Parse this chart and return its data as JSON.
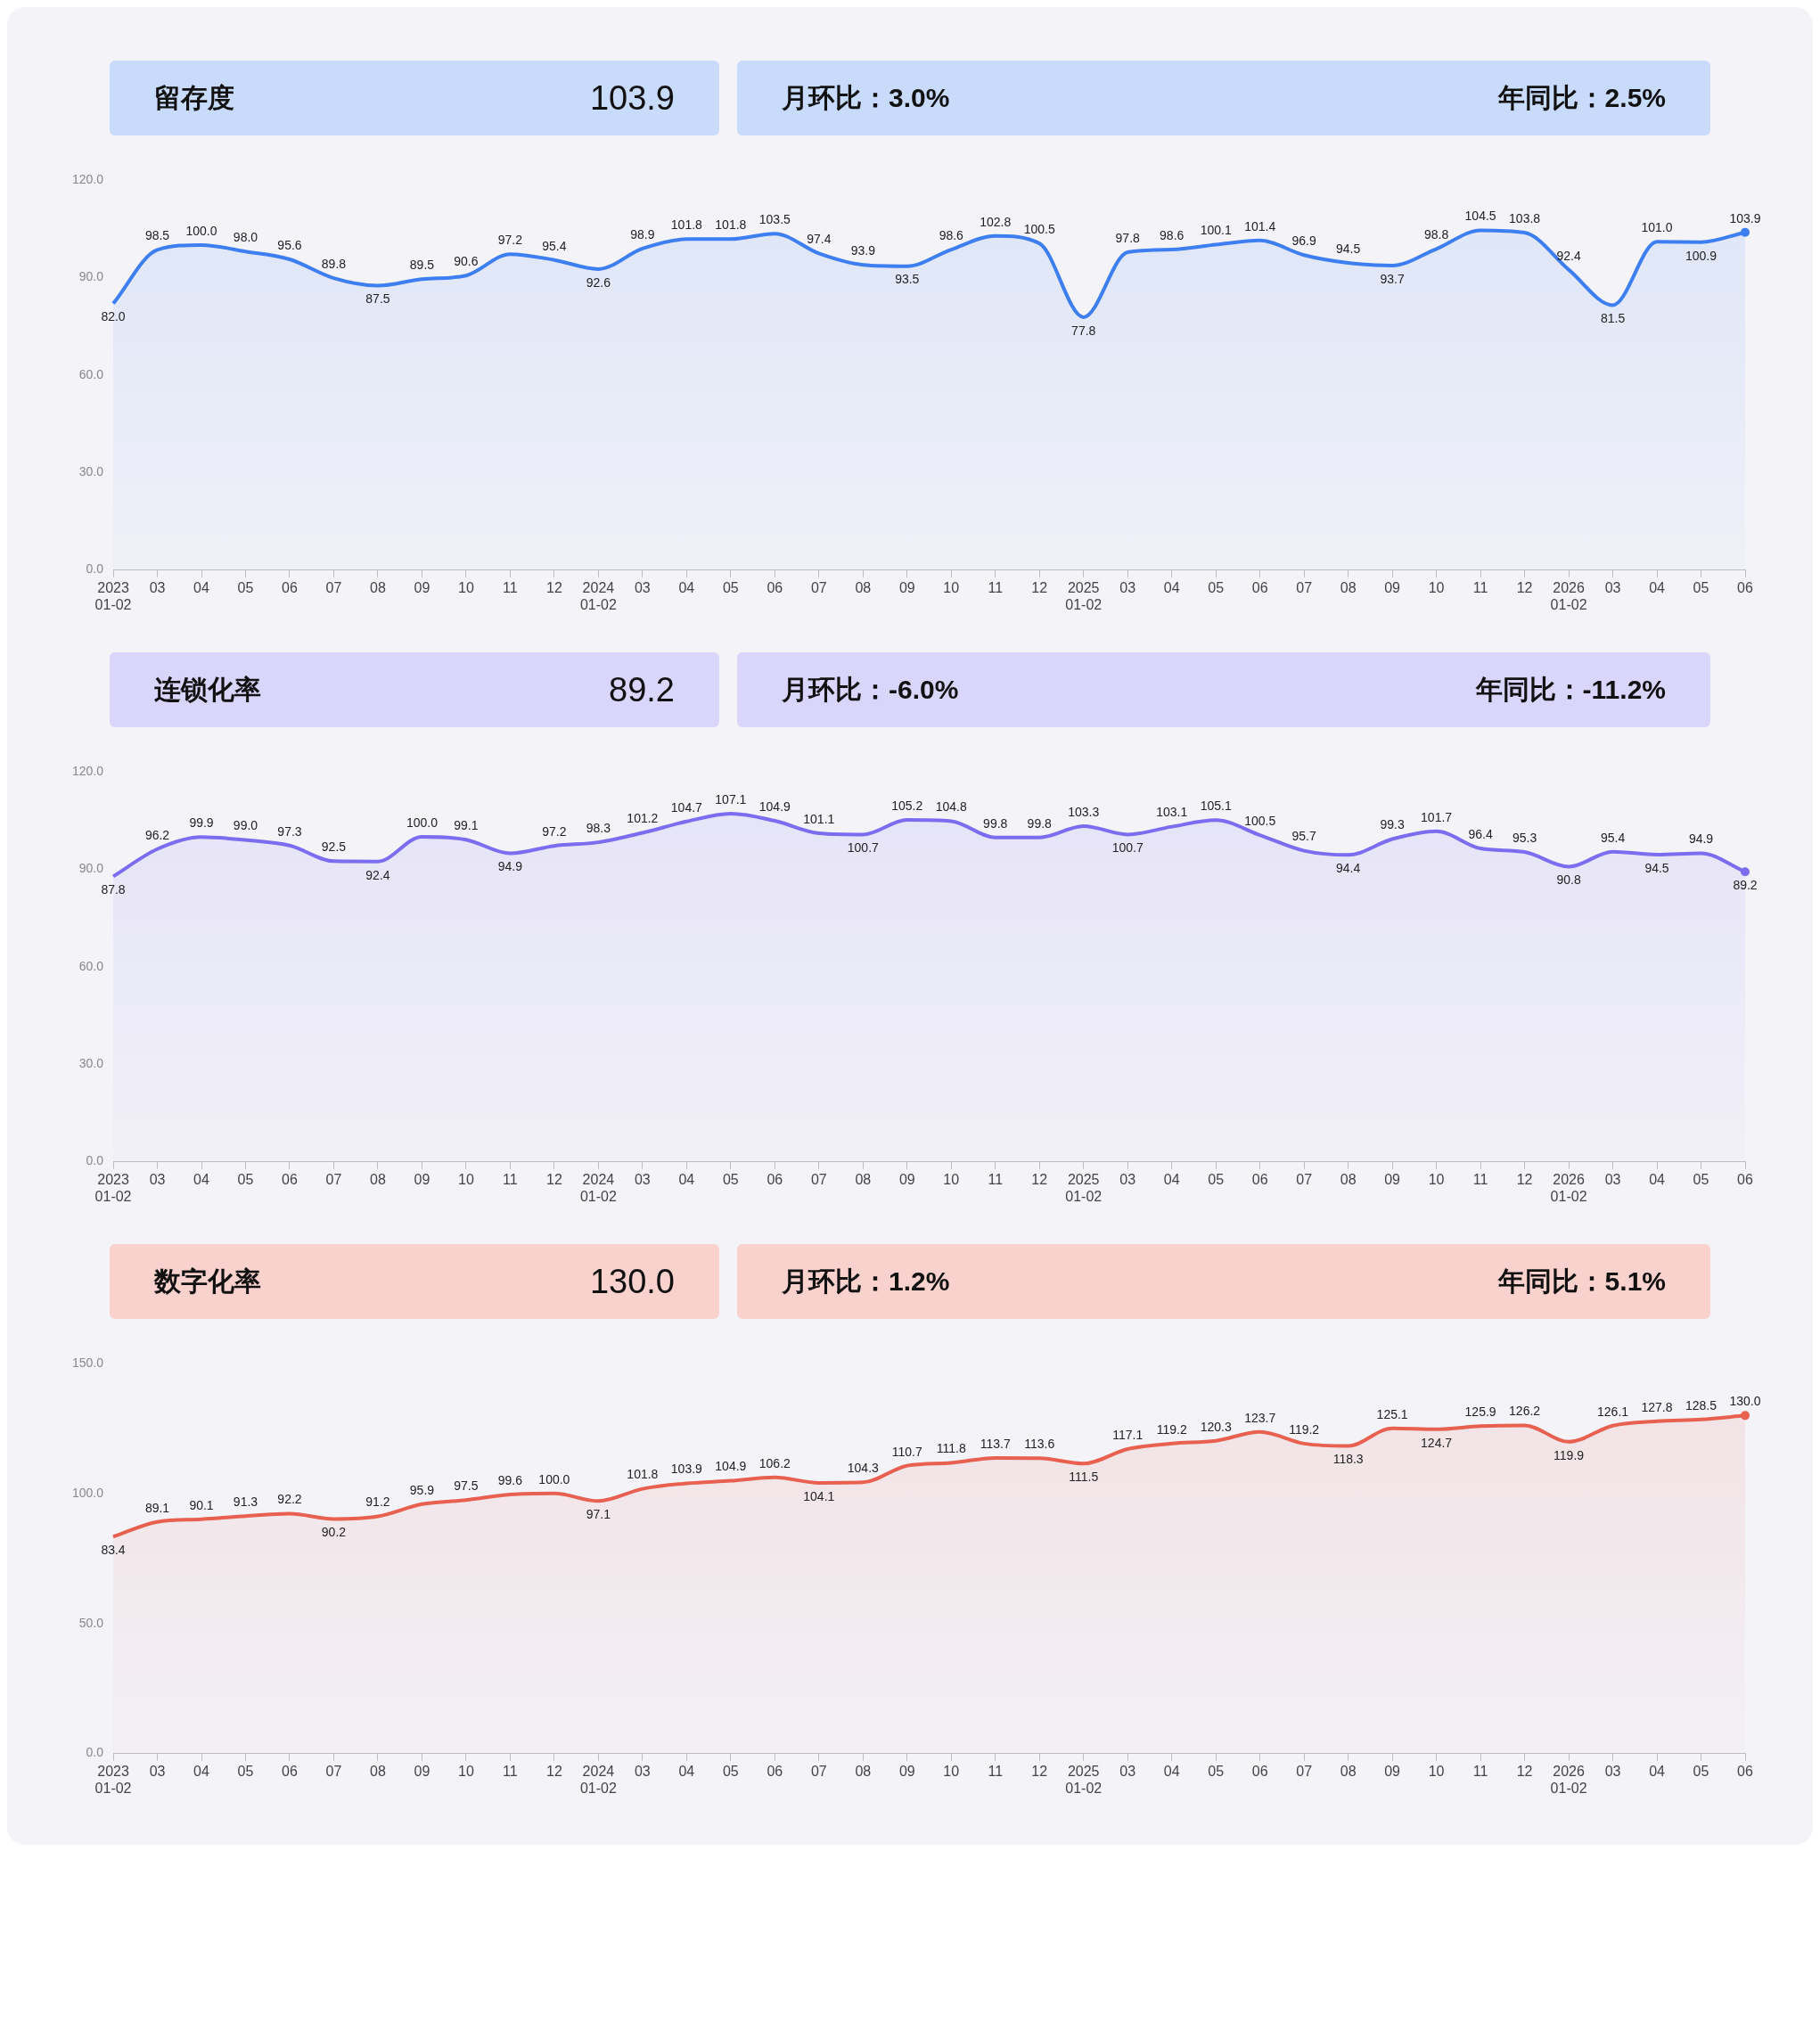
{
  "chart_data": [
    {
      "type": "area",
      "title": "留存度",
      "annotations": [
        "103.9",
        "月环比：3.0%",
        "年同比：2.5%"
      ],
      "categories": [
        "2023\n01-02",
        "03",
        "04",
        "05",
        "06",
        "07",
        "08",
        "09",
        "10",
        "11",
        "12",
        "2024\n01-02",
        "03",
        "04",
        "05",
        "06",
        "07",
        "08",
        "09",
        "10",
        "11",
        "12",
        "2025\n01-02",
        "03",
        "04",
        "05",
        "06",
        "07",
        "08",
        "09",
        "10",
        "11",
        "12",
        "2026\n01-02",
        "03",
        "04",
        "05",
        "06"
      ],
      "series": [
        {
          "color": "#3d7ef0",
          "values": [
            82.0,
            98.5,
            100.0,
            98.0,
            95.6,
            89.8,
            87.5,
            89.5,
            90.6,
            97.2,
            95.4,
            92.6,
            98.9,
            101.8,
            101.8,
            103.5,
            97.4,
            93.9,
            93.5,
            98.6,
            102.8,
            100.5,
            77.8,
            97.8,
            98.6,
            100.1,
            101.4,
            96.9,
            94.5,
            93.7,
            98.8,
            104.5,
            103.8,
            92.4,
            81.5,
            101.0,
            100.9,
            103.9
          ],
          "value_labels": [
            "82.0",
            "98.5",
            "100.0",
            "98.0",
            "95.6",
            "89.8",
            "87.5",
            "89.5",
            "90.6",
            "97.2",
            "95.4",
            "92.6",
            "98.9",
            "101.8",
            "101.8",
            "103.5",
            "97.4",
            "93.9",
            "93.5",
            "98.6",
            "102.8",
            "100.5",
            "77.8",
            "97.8",
            "98.6",
            "100.1",
            "101.4",
            "96.9",
            "94.5",
            "93.7",
            "98.8",
            "104.5",
            "103.8",
            "92.4",
            "81.5",
            "101.0",
            "100.9",
            "103.9"
          ]
        }
      ],
      "ylim": [
        0,
        120
      ],
      "yticks": [
        {
          "value": 0,
          "label": "0.0"
        },
        {
          "value": 30,
          "label": "30.0"
        },
        {
          "value": 60,
          "label": "60.0"
        },
        {
          "value": 90,
          "label": "90.0"
        },
        {
          "value": 120,
          "label": "120.0"
        }
      ]
    },
    {
      "type": "area",
      "title": "连锁化率",
      "annotations": [
        "89.2",
        "月环比：-6.0%",
        "年同比：-11.2%"
      ],
      "categories": [
        "2023\n01-02",
        "03",
        "04",
        "05",
        "06",
        "07",
        "08",
        "09",
        "10",
        "11",
        "12",
        "2024\n01-02",
        "03",
        "04",
        "05",
        "06",
        "07",
        "08",
        "09",
        "10",
        "11",
        "12",
        "2025\n01-02",
        "03",
        "04",
        "05",
        "06",
        "07",
        "08",
        "09",
        "10",
        "11",
        "12",
        "2026\n01-02",
        "03",
        "04",
        "05",
        "06"
      ],
      "series": [
        {
          "color": "#7b6cf0",
          "values": [
            87.8,
            96.2,
            99.9,
            99.0,
            97.3,
            92.5,
            92.4,
            100.0,
            99.1,
            94.9,
            97.2,
            98.3,
            101.2,
            104.7,
            107.1,
            104.9,
            101.1,
            100.7,
            105.2,
            104.8,
            99.8,
            99.8,
            103.3,
            100.7,
            103.1,
            105.1,
            100.5,
            95.7,
            94.4,
            99.3,
            101.7,
            96.4,
            95.3,
            90.8,
            95.4,
            94.5,
            94.9,
            89.2
          ],
          "value_labels": [
            "87.8",
            "96.2",
            "99.9",
            "99.0",
            "97.3",
            "92.5",
            "92.4",
            "100.0",
            "99.1",
            "94.9",
            "97.2",
            "98.3",
            "101.2",
            "104.7",
            "107.1",
            "104.9",
            "101.1",
            "100.7",
            "105.2",
            "104.8",
            "99.8",
            "99.8",
            "103.3",
            "100.7",
            "103.1",
            "105.1",
            "100.5",
            "95.7",
            "94.4",
            "99.3",
            "101.7",
            "96.4",
            "95.3",
            "90.8",
            "95.4",
            "94.5",
            "94.9",
            "89.2"
          ]
        }
      ],
      "ylim": [
        0,
        120
      ],
      "yticks": [
        {
          "value": 0,
          "label": "0.0"
        },
        {
          "value": 30,
          "label": "30.0"
        },
        {
          "value": 60,
          "label": "60.0"
        },
        {
          "value": 90,
          "label": "90.0"
        },
        {
          "value": 120,
          "label": "120.0"
        }
      ]
    },
    {
      "type": "area",
      "title": "数字化率",
      "annotations": [
        "130.0",
        "月环比：1.2%",
        "年同比：5.1%"
      ],
      "categories": [
        "2023\n01-02",
        "03",
        "04",
        "05",
        "06",
        "07",
        "08",
        "09",
        "10",
        "11",
        "12",
        "2024\n01-02",
        "03",
        "04",
        "05",
        "06",
        "07",
        "08",
        "09",
        "10",
        "11",
        "12",
        "2025\n01-02",
        "03",
        "04",
        "05",
        "06",
        "07",
        "08",
        "09",
        "10",
        "11",
        "12",
        "2026\n01-02",
        "03",
        "04",
        "05",
        "06"
      ],
      "series": [
        {
          "color": "#e8604f",
          "values": [
            83.4,
            89.1,
            90.1,
            91.3,
            92.2,
            90.2,
            91.2,
            95.9,
            97.5,
            99.6,
            100.0,
            97.1,
            101.8,
            103.9,
            104.9,
            106.2,
            104.1,
            104.3,
            110.7,
            111.8,
            113.7,
            113.6,
            111.5,
            117.1,
            119.2,
            120.3,
            123.7,
            119.2,
            118.3,
            125.1,
            124.7,
            125.9,
            126.2,
            119.9,
            126.1,
            127.8,
            128.5,
            130.0
          ],
          "value_labels": [
            "83.4",
            "89.1",
            "90.1",
            "91.3",
            "92.2",
            "90.2",
            "91.2",
            "95.9",
            "97.5",
            "99.6",
            "100.0",
            "97.1",
            "101.8",
            "103.9",
            "104.9",
            "106.2",
            "104.1",
            "104.3",
            "110.7",
            "111.8",
            "113.7",
            "113.6",
            "111.5",
            "117.1",
            "119.2",
            "120.3",
            "123.7",
            "119.2",
            "118.3",
            "125.1",
            "124.7",
            "125.9",
            "126.2",
            "119.9",
            "126.1",
            "127.8",
            "128.5",
            "130.0"
          ]
        }
      ],
      "ylim": [
        0,
        150
      ],
      "yticks": [
        {
          "value": 0,
          "label": "0.0"
        },
        {
          "value": 50,
          "label": "50.0"
        },
        {
          "value": 100,
          "label": "100.0"
        },
        {
          "value": 150,
          "label": "150.0"
        }
      ]
    }
  ]
}
